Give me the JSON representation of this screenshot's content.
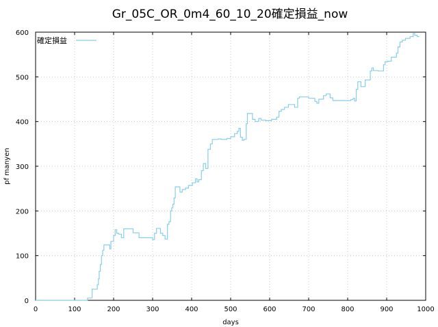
{
  "chart_data": {
    "type": "line",
    "title": "Gr_05C_OR_0m4_60_10_20確定損益_now",
    "xlabel": "days",
    "ylabel": "pf manyen",
    "xlim": [
      0,
      1000
    ],
    "ylim": [
      0,
      600
    ],
    "xticks": [
      "0",
      "100",
      "200",
      "300",
      "400",
      "500",
      "600",
      "700",
      "800",
      "900",
      "1000"
    ],
    "yticks": [
      "0",
      "100",
      "200",
      "300",
      "400",
      "500",
      "600"
    ],
    "grid": true,
    "legend_position": "top-left",
    "series": [
      {
        "name": "確定損益",
        "color": "#87ceeb",
        "step": true,
        "points": [
          [
            0,
            0
          ],
          [
            133,
            0
          ],
          [
            133,
            5
          ],
          [
            145,
            5
          ],
          [
            145,
            25
          ],
          [
            158,
            25
          ],
          [
            158,
            35
          ],
          [
            161,
            35
          ],
          [
            161,
            48
          ],
          [
            163,
            48
          ],
          [
            163,
            65
          ],
          [
            166,
            65
          ],
          [
            166,
            80
          ],
          [
            169,
            80
          ],
          [
            169,
            100
          ],
          [
            172,
            100
          ],
          [
            172,
            112
          ],
          [
            175,
            112
          ],
          [
            175,
            124
          ],
          [
            190,
            124
          ],
          [
            190,
            115
          ],
          [
            193,
            115
          ],
          [
            193,
            132
          ],
          [
            200,
            132
          ],
          [
            200,
            145
          ],
          [
            204,
            145
          ],
          [
            204,
            158
          ],
          [
            208,
            158
          ],
          [
            208,
            150
          ],
          [
            213,
            150
          ],
          [
            213,
            148
          ],
          [
            220,
            148
          ],
          [
            220,
            140
          ],
          [
            226,
            140
          ],
          [
            226,
            160
          ],
          [
            250,
            160
          ],
          [
            250,
            151
          ],
          [
            265,
            151
          ],
          [
            265,
            140
          ],
          [
            300,
            140
          ],
          [
            300,
            136
          ],
          [
            305,
            136
          ],
          [
            305,
            150
          ],
          [
            310,
            150
          ],
          [
            310,
            161
          ],
          [
            320,
            161
          ],
          [
            320,
            150
          ],
          [
            326,
            150
          ],
          [
            326,
            145
          ],
          [
            332,
            145
          ],
          [
            332,
            137
          ],
          [
            338,
            137
          ],
          [
            338,
            170
          ],
          [
            342,
            170
          ],
          [
            342,
            176
          ],
          [
            346,
            176
          ],
          [
            346,
            200
          ],
          [
            349,
            200
          ],
          [
            349,
            207
          ],
          [
            352,
            207
          ],
          [
            352,
            215
          ],
          [
            355,
            215
          ],
          [
            355,
            229
          ],
          [
            358,
            229
          ],
          [
            358,
            254
          ],
          [
            370,
            254
          ],
          [
            370,
            242
          ],
          [
            376,
            242
          ],
          [
            376,
            248
          ],
          [
            384,
            248
          ],
          [
            384,
            251
          ],
          [
            392,
            251
          ],
          [
            392,
            257
          ],
          [
            402,
            257
          ],
          [
            402,
            263
          ],
          [
            410,
            263
          ],
          [
            410,
            272
          ],
          [
            414,
            272
          ],
          [
            414,
            265
          ],
          [
            418,
            265
          ],
          [
            418,
            270
          ],
          [
            425,
            270
          ],
          [
            425,
            290
          ],
          [
            430,
            290
          ],
          [
            430,
            306
          ],
          [
            436,
            306
          ],
          [
            436,
            295
          ],
          [
            442,
            295
          ],
          [
            442,
            338
          ],
          [
            448,
            338
          ],
          [
            448,
            350
          ],
          [
            453,
            350
          ],
          [
            453,
            360
          ],
          [
            468,
            360
          ],
          [
            468,
            361
          ],
          [
            476,
            361
          ],
          [
            476,
            360
          ],
          [
            490,
            360
          ],
          [
            490,
            362
          ],
          [
            500,
            362
          ],
          [
            500,
            366
          ],
          [
            510,
            366
          ],
          [
            510,
            373
          ],
          [
            517,
            373
          ],
          [
            517,
            378
          ],
          [
            521,
            378
          ],
          [
            521,
            385
          ],
          [
            525,
            385
          ],
          [
            525,
            365
          ],
          [
            530,
            365
          ],
          [
            530,
            358
          ],
          [
            534,
            358
          ],
          [
            534,
            360
          ],
          [
            540,
            360
          ],
          [
            540,
            395
          ],
          [
            543,
            395
          ],
          [
            543,
            418
          ],
          [
            556,
            418
          ],
          [
            556,
            405
          ],
          [
            563,
            405
          ],
          [
            563,
            400
          ],
          [
            572,
            400
          ],
          [
            572,
            407
          ],
          [
            578,
            407
          ],
          [
            578,
            403
          ],
          [
            590,
            403
          ],
          [
            590,
            402
          ],
          [
            605,
            402
          ],
          [
            605,
            405
          ],
          [
            618,
            405
          ],
          [
            618,
            410
          ],
          [
            624,
            410
          ],
          [
            624,
            423
          ],
          [
            630,
            423
          ],
          [
            630,
            427
          ],
          [
            638,
            427
          ],
          [
            638,
            432
          ],
          [
            648,
            432
          ],
          [
            648,
            438
          ],
          [
            664,
            438
          ],
          [
            664,
            432
          ],
          [
            672,
            432
          ],
          [
            672,
            452
          ],
          [
            676,
            452
          ],
          [
            676,
            455
          ],
          [
            700,
            455
          ],
          [
            700,
            452
          ],
          [
            716,
            452
          ],
          [
            716,
            445
          ],
          [
            721,
            445
          ],
          [
            721,
            441
          ],
          [
            726,
            441
          ],
          [
            726,
            450
          ],
          [
            738,
            450
          ],
          [
            738,
            458
          ],
          [
            745,
            458
          ],
          [
            745,
            462
          ],
          [
            755,
            462
          ],
          [
            755,
            453
          ],
          [
            762,
            453
          ],
          [
            762,
            447
          ],
          [
            808,
            447
          ],
          [
            808,
            449
          ],
          [
            814,
            449
          ],
          [
            814,
            452
          ],
          [
            818,
            452
          ],
          [
            818,
            446
          ],
          [
            822,
            446
          ],
          [
            822,
            472
          ],
          [
            826,
            472
          ],
          [
            826,
            489
          ],
          [
            834,
            489
          ],
          [
            834,
            478
          ],
          [
            845,
            478
          ],
          [
            845,
            493
          ],
          [
            858,
            493
          ],
          [
            858,
            513
          ],
          [
            862,
            513
          ],
          [
            862,
            520
          ],
          [
            866,
            520
          ],
          [
            866,
            514
          ],
          [
            878,
            514
          ],
          [
            878,
            513
          ],
          [
            892,
            513
          ],
          [
            892,
            527
          ],
          [
            896,
            527
          ],
          [
            896,
            534
          ],
          [
            903,
            534
          ],
          [
            903,
            535
          ],
          [
            912,
            535
          ],
          [
            912,
            544
          ],
          [
            925,
            544
          ],
          [
            925,
            553
          ],
          [
            929,
            553
          ],
          [
            929,
            567
          ],
          [
            934,
            567
          ],
          [
            934,
            578
          ],
          [
            940,
            578
          ],
          [
            940,
            582
          ],
          [
            948,
            582
          ],
          [
            948,
            586
          ],
          [
            960,
            586
          ],
          [
            960,
            590
          ],
          [
            968,
            590
          ],
          [
            968,
            597
          ],
          [
            972,
            597
          ],
          [
            972,
            593
          ],
          [
            978,
            593
          ],
          [
            978,
            590
          ],
          [
            984,
            590
          ]
        ]
      }
    ]
  }
}
